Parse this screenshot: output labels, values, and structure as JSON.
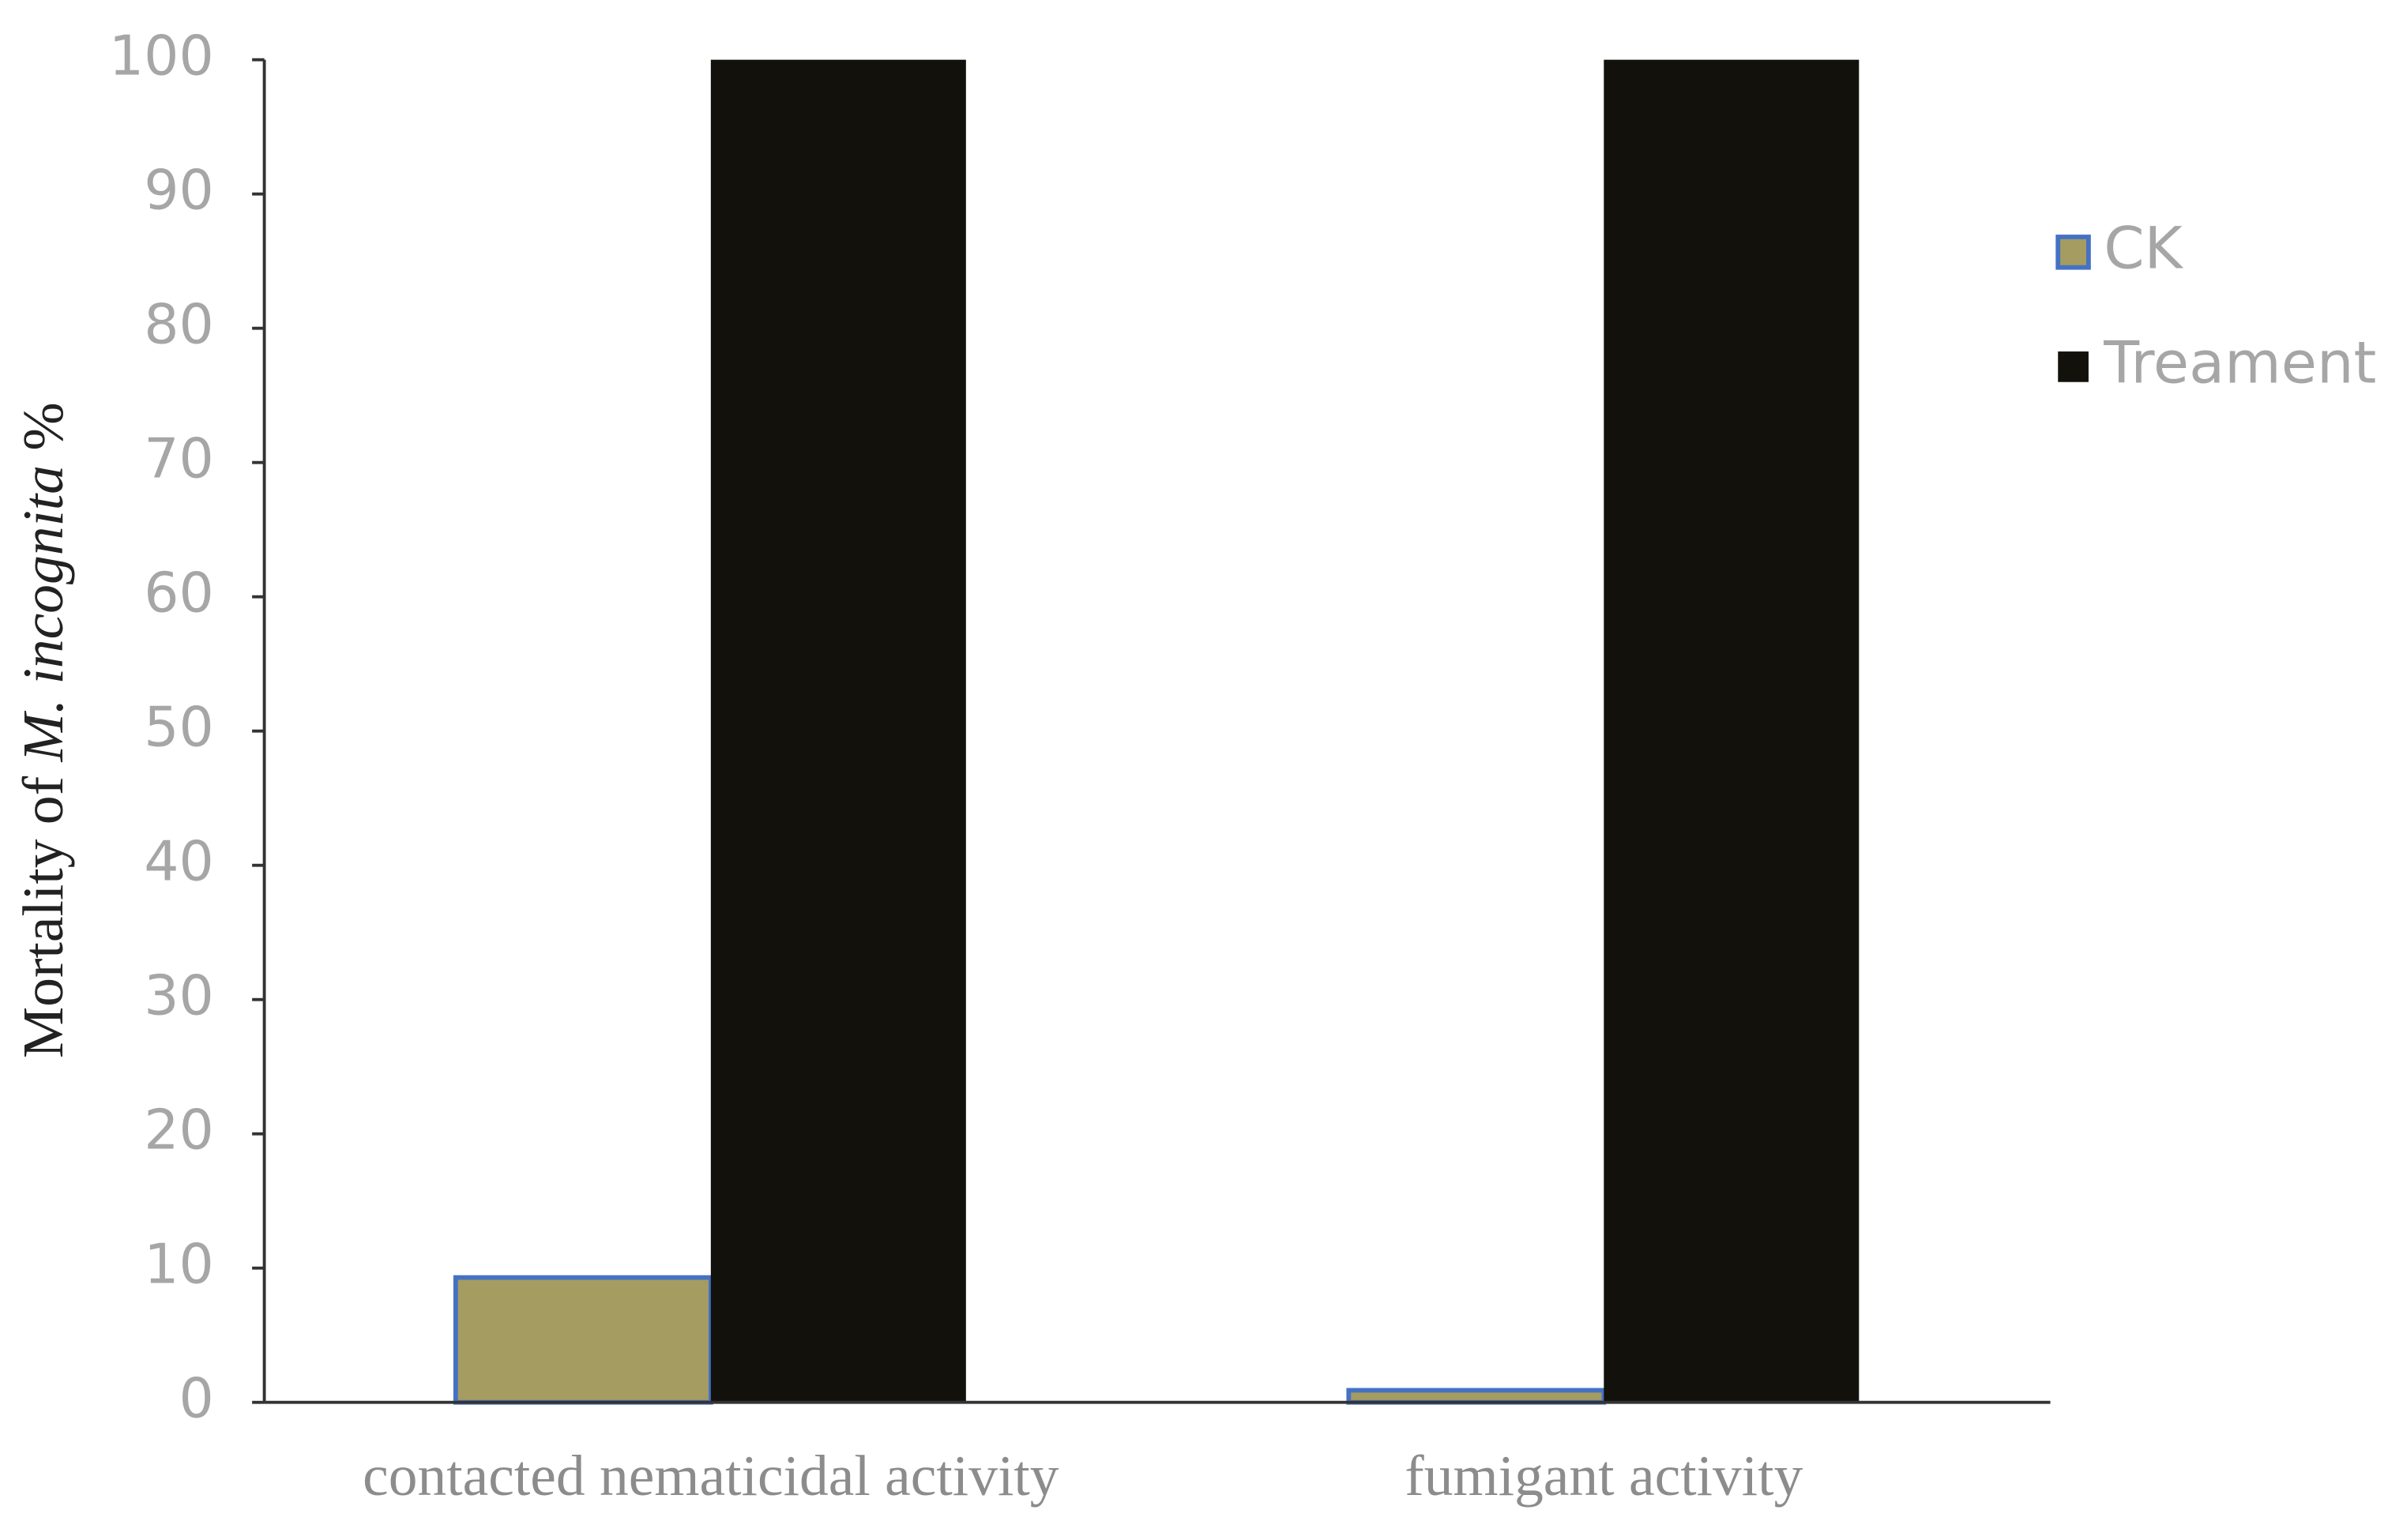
{
  "chart_data": {
    "type": "bar",
    "y_label": {
      "text": "Mortality of",
      "italic": "M. incognita",
      "unit": "%"
    },
    "categories": [
      "contacted nematicidal activity",
      "fumigant activity"
    ],
    "series": [
      {
        "name": "CK",
        "color": "#a59c62",
        "edge_color": "#4472c4",
        "values": [
          9.3,
          0.9
        ]
      },
      {
        "name": "Treament",
        "color": "#12110c",
        "values": [
          100,
          100
        ]
      }
    ],
    "ylim": [
      0,
      100
    ],
    "yticks": [
      0,
      10,
      20,
      30,
      40,
      50,
      60,
      70,
      80,
      90,
      100
    ],
    "grid": false,
    "legend": "right"
  }
}
